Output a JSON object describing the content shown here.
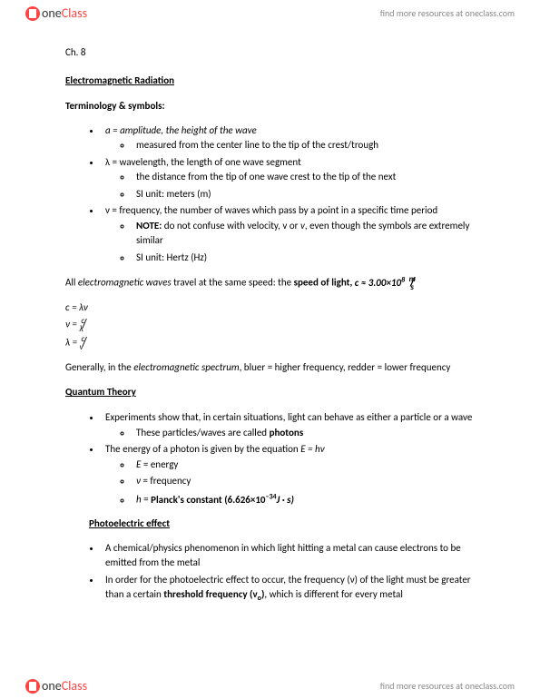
{
  "brand": {
    "one": "one",
    "class": "Class",
    "tagline": "find more resources at oneclass.com"
  },
  "chapter": "Ch. 8",
  "sections": {
    "emr": {
      "title": "Electromagnetic Radiation",
      "termTitle": "Terminology & symbols:",
      "items": {
        "amp": {
          "head": "a  = amplitude, the height of the wave",
          "sub1": "measured from the center line to the tip of the crest/trough"
        },
        "wav": {
          "head": "λ = wavelength, the length of one wave segment",
          "sub1": "the distance from the tip of one wave crest to the tip of the next",
          "sub2": "SI unit: meters (m)"
        },
        "freq": {
          "head": "ν = frequency, the number of waves which pass by a point in a specific time period",
          "note_label": "NOTE:",
          "note_rest": " do not confuse with velocity, v or ",
          "note_v": "v",
          "note_tail": ", even though the symbols are extremely similar",
          "sub2": "SI unit: Hertz (Hz)"
        }
      },
      "speedPara": {
        "pre": "All ",
        "em": "electromagnetic waves",
        "mid": " travel at the same speed: the ",
        "bold": "speed of light, ",
        "sym": "c ≈ 3.00×10",
        "exp": "8",
        "unitTop": "m",
        "unitBot": "s"
      },
      "eq1_lhs": "c = λν",
      "eq2": {
        "lhs": "ν = ",
        "num": "c",
        "den": "λ"
      },
      "eq3": {
        "lhs": "λ = ",
        "num": "c",
        "den": "ν"
      },
      "spectrum": {
        "pre": "Generally, in the ",
        "em": "electromagnetic spectrum",
        "post": ", bluer = higher frequency, redder = lower frequency"
      }
    },
    "qt": {
      "title": "Quantum Theory",
      "i1": {
        "head": "Experiments show that, in certain situations, light can behave as either a particle or a wave",
        "sub_pre": "These particles/waves are called ",
        "sub_bold": "photons"
      },
      "i2": {
        "head_pre": "The energy of a photon is given by the equation ",
        "head_eq": "E = hν",
        "s1_pre": "E",
        "s1_post": " = energy",
        "s2_pre": "ν",
        "s2_post": " = frequency",
        "s3_pre": "h",
        "s3_mid": " = ",
        "s3_bold": "Planck's constant (6.626×10",
        "s3_exp": "−34",
        "s3_tail": "J · s)"
      }
    },
    "pe": {
      "title": "Photoelectric effect",
      "i1": "A chemical/physics phenomenon in which light hitting a metal can cause electrons to be emitted from the metal",
      "i2_pre": "In order for the photoelectric effect to occur, the frequency (ν) of the light must be greater than a certain ",
      "i2_bold": "threshold frequency (ν",
      "i2_sub": "o",
      "i2_bold2": ")",
      "i2_post": ", which is different for every metal"
    }
  }
}
